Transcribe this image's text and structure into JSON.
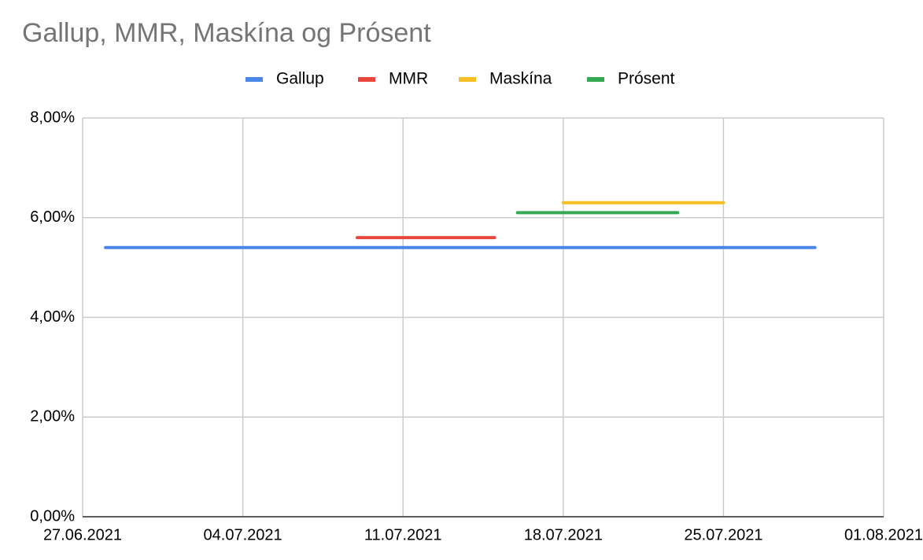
{
  "chart_data": {
    "type": "line",
    "title": "Gallup, MMR, Maskína og Prósent",
    "xlim": [
      "27.06.2021",
      "01.08.2021"
    ],
    "xticks": [
      "27.06.2021",
      "04.07.2021",
      "11.07.2021",
      "18.07.2021",
      "25.07.2021",
      "01.08.2021"
    ],
    "ylim": [
      0,
      8
    ],
    "yticks": [
      {
        "value": 0,
        "label": "0,00%"
      },
      {
        "value": 2,
        "label": "2,00%"
      },
      {
        "value": 4,
        "label": "4,00%"
      },
      {
        "value": 6,
        "label": "6,00%"
      },
      {
        "value": 8,
        "label": "8,00%"
      }
    ],
    "grid": true,
    "legend": "top",
    "series": [
      {
        "name": "Gallup",
        "color": "#4a86e8",
        "x": [
          "28.06.2021",
          "29.07.2021"
        ],
        "values": [
          5.4,
          5.4
        ]
      },
      {
        "name": "MMR",
        "color": "#e8453c",
        "x": [
          "09.07.2021",
          "15.07.2021"
        ],
        "values": [
          5.6,
          5.6
        ]
      },
      {
        "name": "Maskína",
        "color": "#f6bf26",
        "x": [
          "18.07.2021",
          "25.07.2021"
        ],
        "values": [
          6.3,
          6.3
        ]
      },
      {
        "name": "Prósent",
        "color": "#34a853",
        "x": [
          "16.07.2021",
          "23.07.2021"
        ],
        "values": [
          6.1,
          6.1
        ]
      }
    ]
  }
}
